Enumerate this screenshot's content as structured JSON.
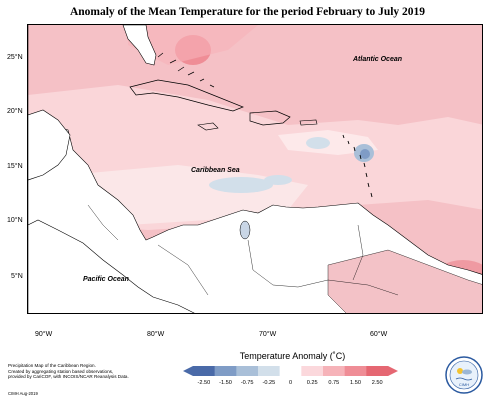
{
  "title": "Anomaly of the Mean Temperature for the period February to July 2019",
  "map": {
    "ocean_labels": {
      "atlantic": "Atlantic Ocean",
      "caribbean": "Caribbean Sea",
      "pacific": "Pacific Ocean"
    },
    "lat_ticks": [
      "25°N",
      "20°N",
      "15°N",
      "10°N",
      "5°N"
    ],
    "lon_ticks": [
      "90°W",
      "80°W",
      "70°W",
      "60°W"
    ]
  },
  "legend": {
    "title": "Temperature Anomaly (˚C)",
    "ticks": [
      "-2.50",
      "-1.50",
      "-0.75",
      "-0.25",
      "0",
      "0.25",
      "0.75",
      "1.50",
      "2.50"
    ],
    "colors": [
      "#4a6aa8",
      "#7f9cc6",
      "#a9bfd8",
      "#d2dfea",
      "#ffffff",
      "#fbd8dc",
      "#f6b3b9",
      "#ef8d96",
      "#e56772"
    ]
  },
  "footer": {
    "description_lines": [
      "Precipitation Map of the Caribbean Region.",
      "Created by aggregating station based observations,",
      "provided by CariCOF, with INCOIS/NCAR Reanalysis Data."
    ],
    "credit": "CIMH Aug-2019"
  },
  "logo": {
    "text": "CIMH"
  }
}
